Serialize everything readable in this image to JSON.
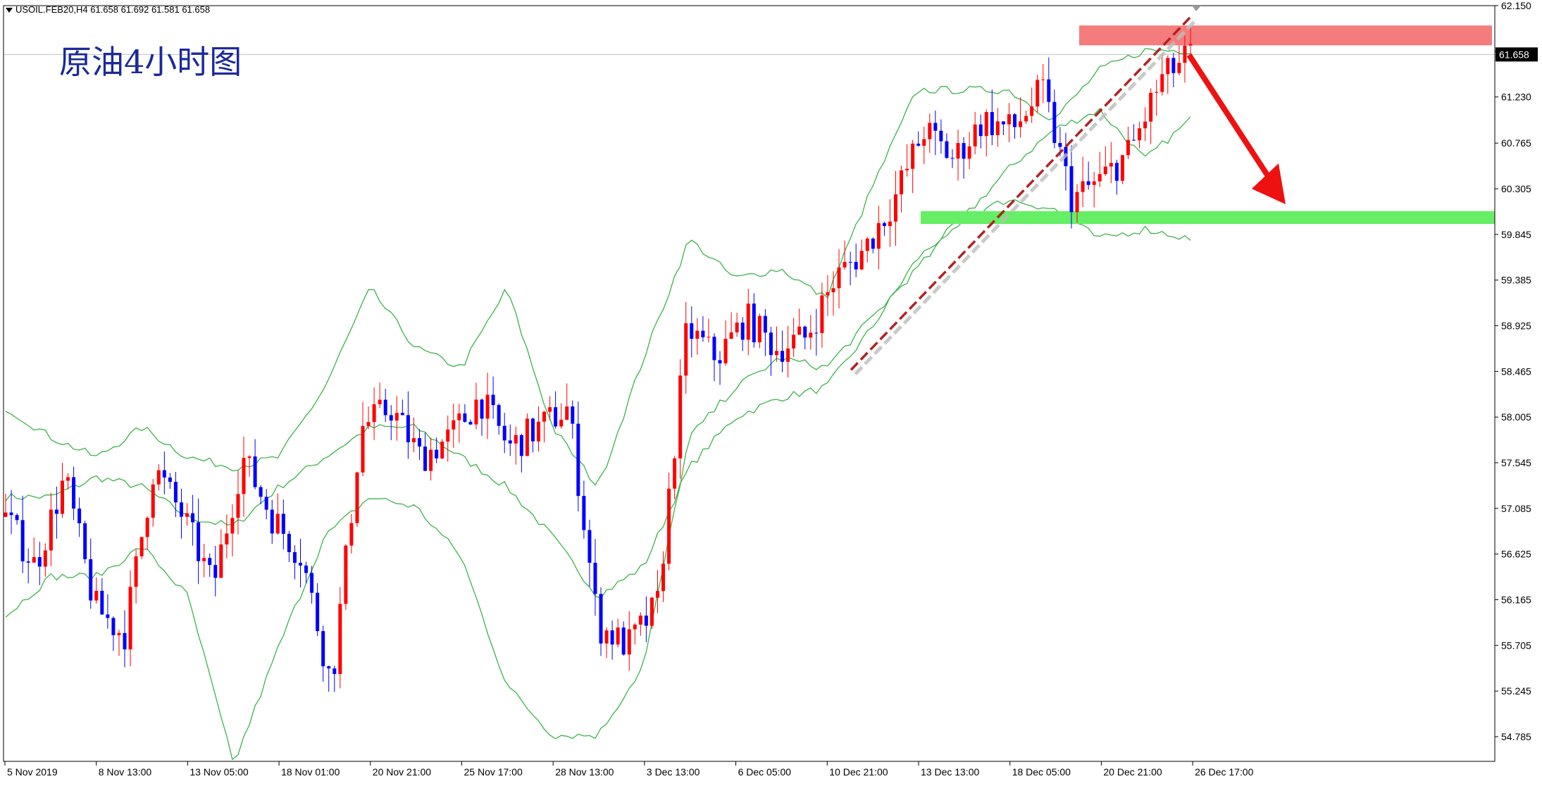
{
  "header": {
    "symbol_info": "USOIL.FEB20,H4  61.658 61.692 61.581 61.658"
  },
  "overlay": {
    "title": "原油4小时图"
  },
  "colors": {
    "bull_candle": "#ff0000",
    "bear_candle": "#0000ff",
    "bollinger": "#3cb34a",
    "resistance_zone": "#f47c7c",
    "support_zone": "#66ee66",
    "trendline": "#b22222",
    "forecast_arrow": "#ee1111"
  },
  "chart_data": {
    "type": "candlestick",
    "symbol": "USOIL.FEB20",
    "timeframe": "H4",
    "current_price": 61.658,
    "price_label": "61.658",
    "ylim": [
      54.5,
      62.15
    ],
    "y_ticks": [
      "62.150",
      "61.690",
      "61.230",
      "60.765",
      "60.305",
      "59.845",
      "59.385",
      "58.925",
      "58.465",
      "58.005",
      "57.545",
      "57.085",
      "56.625",
      "56.165",
      "55.705",
      "55.245",
      "54.785"
    ],
    "x_ticks": [
      "5 Nov 2019",
      "8 Nov 13:00",
      "13 Nov 05:00",
      "18 Nov 01:00",
      "20 Nov 21:00",
      "25 Nov 17:00",
      "28 Nov 13:00",
      "3 Dec 13:00",
      "6 Dec 05:00",
      "10 Dec 21:00",
      "13 Dec 13:00",
      "18 Dec 05:00",
      "20 Dec 21:00",
      "26 Dec 17:00"
    ],
    "resistance_zone": [
      61.75,
      61.95
    ],
    "support_zone": [
      59.95,
      60.08
    ],
    "trendline": {
      "from_price": 58.48,
      "to_price": 62.05
    },
    "forecast": "down",
    "bollinger_anchors": {
      "mid": [
        57.2,
        57.2,
        57.4,
        57.3,
        57.0,
        56.9,
        57.3,
        57.6,
        57.9,
        57.9,
        57.6,
        57.3,
        56.8,
        56.2,
        56.5,
        57.5,
        58.0,
        58.2,
        58.3,
        58.9,
        59.6,
        60.0,
        60.5,
        60.9,
        61.1,
        60.6,
        61.0
      ],
      "upper": [
        58.1,
        57.8,
        57.6,
        57.9,
        57.6,
        57.5,
        57.6,
        58.3,
        59.3,
        58.7,
        58.5,
        59.3,
        57.9,
        57.3,
        58.6,
        59.8,
        59.4,
        59.5,
        59.2,
        60.3,
        61.3,
        61.3,
        61.3,
        61.0,
        61.5,
        61.7,
        61.7
      ],
      "lower": [
        56.0,
        56.4,
        56.4,
        56.7,
        56.2,
        54.5,
        55.7,
        56.8,
        57.2,
        57.1,
        56.6,
        55.3,
        54.8,
        54.8,
        55.5,
        57.8,
        58.3,
        58.6,
        58.5,
        59.0,
        59.5,
        60.0,
        60.2,
        60.1,
        59.8,
        59.9,
        59.8
      ]
    },
    "close_anchors": [
      57.0,
      56.5,
      57.4,
      56.1,
      55.8,
      57.5,
      57.0,
      56.3,
      57.6,
      57.0,
      56.6,
      55.3,
      57.9,
      58.1,
      57.6,
      57.8,
      58.2,
      57.7,
      57.9,
      58.1,
      55.9,
      55.7,
      56.1,
      58.9,
      58.6,
      59.0,
      58.7,
      58.8,
      59.4,
      59.7,
      60.2,
      60.9,
      60.6,
      61.0,
      60.9,
      61.3,
      60.2,
      60.4,
      60.7,
      61.4,
      61.66
    ]
  }
}
